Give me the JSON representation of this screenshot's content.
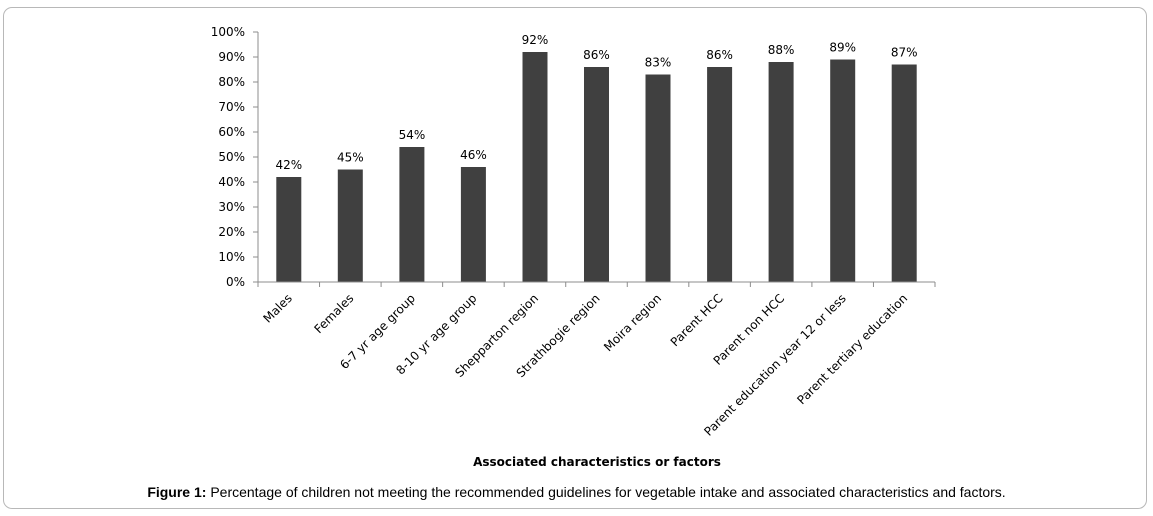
{
  "chart_data": {
    "type": "bar",
    "categories": [
      "Males",
      "Females",
      "6-7 yr age group",
      "8-10 yr age group",
      "Shepparton region",
      "Strathbogie region",
      "Moira region",
      "Parent HCC",
      "Parent non HCC",
      "Parent education year 12 or less",
      "Parent tertiary education"
    ],
    "values": [
      42,
      45,
      54,
      46,
      92,
      86,
      83,
      86,
      88,
      89,
      87
    ],
    "data_labels": [
      "42%",
      "45%",
      "54%",
      "46%",
      "92%",
      "86%",
      "83%",
      "86%",
      "88%",
      "89%",
      "87%"
    ],
    "y_ticks": [
      "0%",
      "10%",
      "20%",
      "30%",
      "40%",
      "50%",
      "60%",
      "70%",
      "80%",
      "90%",
      "100%"
    ],
    "ylim": [
      0,
      100
    ],
    "xlabel": "Associated characteristics or factors",
    "ylabel": "",
    "grid": false,
    "bar_color": "#404040"
  },
  "caption": {
    "label": "Figure 1:",
    "text": " Percentage of children not meeting the recommended guidelines for vegetable intake and associated characteristics and factors."
  }
}
